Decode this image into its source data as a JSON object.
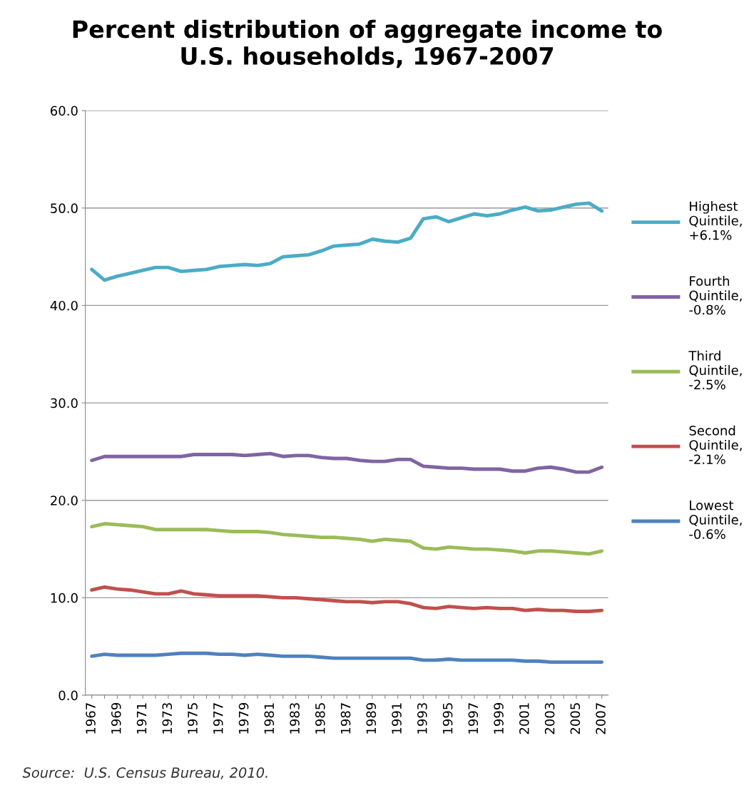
{
  "chart_data": {
    "type": "line",
    "title": "Percent distribution of aggregate income to\nU.S. households, 1967-2007",
    "categories": [
      "1967",
      null,
      "1969",
      null,
      "1971",
      null,
      "1973",
      null,
      "1975",
      null,
      "1977",
      null,
      "1979",
      null,
      "1981",
      null,
      "1983",
      null,
      "1985",
      null,
      "1987",
      null,
      "1989",
      null,
      "1991",
      null,
      "1993",
      null,
      "1995",
      null,
      "1997",
      null,
      "1999",
      null,
      "2001",
      null,
      "2003",
      null,
      "2005",
      null,
      "2007"
    ],
    "series": [
      {
        "name": "Highest\nQuintile,\n+6.1%",
        "color": "#4bacc6",
        "values": [
          43.7,
          42.6,
          43.0,
          43.3,
          43.6,
          43.9,
          43.9,
          43.5,
          43.6,
          43.7,
          44.0,
          44.1,
          44.2,
          44.1,
          44.3,
          45.0,
          45.1,
          45.2,
          45.6,
          46.1,
          46.2,
          46.3,
          46.8,
          46.6,
          46.5,
          46.9,
          48.9,
          49.1,
          48.6,
          49.0,
          49.4,
          49.2,
          49.4,
          49.8,
          50.1,
          49.7,
          49.8,
          50.1,
          50.4,
          50.5,
          49.7
        ]
      },
      {
        "name": "Fourth\nQuintile,\n-0.8%",
        "color": "#8064a2",
        "values": [
          24.1,
          24.5,
          24.5,
          24.5,
          24.5,
          24.5,
          24.5,
          24.5,
          24.7,
          24.7,
          24.7,
          24.7,
          24.6,
          24.7,
          24.8,
          24.5,
          24.6,
          24.6,
          24.4,
          24.3,
          24.3,
          24.1,
          24.0,
          24.0,
          24.2,
          24.2,
          23.5,
          23.4,
          23.3,
          23.3,
          23.2,
          23.2,
          23.2,
          23.0,
          23.0,
          23.3,
          23.4,
          23.2,
          22.9,
          22.9,
          23.4
        ]
      },
      {
        "name": "Third\nQuintile,\n-2.5%",
        "color": "#9bbb59",
        "values": [
          17.3,
          17.6,
          17.5,
          17.4,
          17.3,
          17.0,
          17.0,
          17.0,
          17.0,
          17.0,
          16.9,
          16.8,
          16.8,
          16.8,
          16.7,
          16.5,
          16.4,
          16.3,
          16.2,
          16.2,
          16.1,
          16.0,
          15.8,
          16.0,
          15.9,
          15.8,
          15.1,
          15.0,
          15.2,
          15.1,
          15.0,
          15.0,
          14.9,
          14.8,
          14.6,
          14.8,
          14.8,
          14.7,
          14.6,
          14.5,
          14.8
        ]
      },
      {
        "name": "Second\nQuintile,\n-2.1%",
        "color": "#c0504d",
        "values": [
          10.8,
          11.1,
          10.9,
          10.8,
          10.6,
          10.4,
          10.4,
          10.7,
          10.4,
          10.3,
          10.2,
          10.2,
          10.2,
          10.2,
          10.1,
          10.0,
          10.0,
          9.9,
          9.8,
          9.7,
          9.6,
          9.6,
          9.5,
          9.6,
          9.6,
          9.4,
          9.0,
          8.9,
          9.1,
          9.0,
          8.9,
          9.0,
          8.9,
          8.9,
          8.7,
          8.8,
          8.7,
          8.7,
          8.6,
          8.6,
          8.7
        ]
      },
      {
        "name": "Lowest\nQuintile,\n-0.6%",
        "color": "#4f81bd",
        "values": [
          4.0,
          4.2,
          4.1,
          4.1,
          4.1,
          4.1,
          4.2,
          4.3,
          4.3,
          4.3,
          4.2,
          4.2,
          4.1,
          4.2,
          4.1,
          4.0,
          4.0,
          4.0,
          3.9,
          3.8,
          3.8,
          3.8,
          3.8,
          3.8,
          3.8,
          3.8,
          3.6,
          3.6,
          3.7,
          3.6,
          3.6,
          3.6,
          3.6,
          3.6,
          3.5,
          3.5,
          3.4,
          3.4,
          3.4,
          3.4,
          3.4
        ]
      }
    ],
    "ylim": [
      0,
      60
    ],
    "yticks": [
      {
        "value": 0,
        "label": "0.0"
      },
      {
        "value": 10,
        "label": "10.0"
      },
      {
        "value": 20,
        "label": "20.0"
      },
      {
        "value": 30,
        "label": "30.0"
      },
      {
        "value": 40,
        "label": "40.0"
      },
      {
        "value": 50,
        "label": "50.0"
      },
      {
        "value": 60,
        "label": "60.0"
      }
    ],
    "grid": "y",
    "legend": "right",
    "line_style": "solid",
    "marker": "none",
    "annotations": [
      "Source:  U.S. Census Bureau, 2010."
    ]
  }
}
